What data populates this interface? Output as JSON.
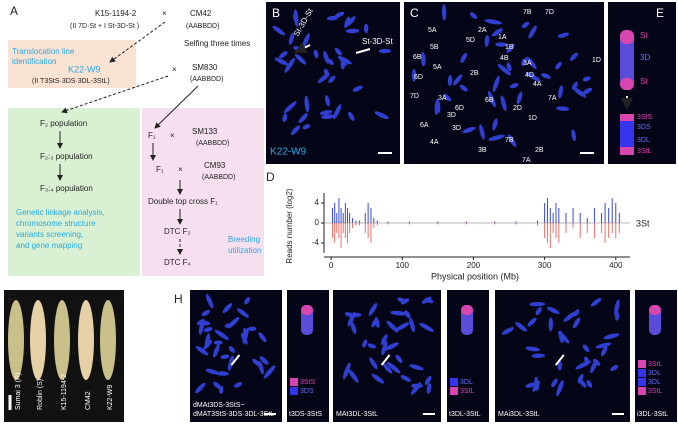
{
  "panel_a": {
    "label": "A",
    "parent1": "K15-1194-2",
    "cross": "×",
    "parent2": "CM42",
    "parent1_karyotype": "(II 7D·St + I St-3D-St )",
    "parent2_genome": "(AABBDD)",
    "note_translocation": [
      "Translocation line",
      "identification"
    ],
    "selfing": "Selfing three times",
    "line": "K22-W9",
    "line_karyotype": "(II T3StS·3DS·3DL-3StL)",
    "parent3": "SM830",
    "parent3_genome": "(AABBDD)",
    "mapping": {
      "steps": [
        "F₂ population",
        "F₂:₃ population",
        "F₃:₄ population"
      ],
      "note": [
        "Genetic linkage analysis,",
        "chromosome  structure",
        "variants screening,",
        "and gene mapping"
      ]
    },
    "breeding": {
      "f1": "F₁",
      "parent4": "SM133",
      "parent4_genome": "(AABBDD)",
      "parent5": "CM93",
      "parent5_genome": "(AABBDD)",
      "steps": [
        "Double top cross F₁",
        "DTC F₂",
        "DTC F₄"
      ],
      "note": [
        "Breeding",
        "utilization"
      ]
    }
  },
  "panel_b": {
    "label": "B",
    "arrows": [
      "St-3D-St",
      "St-3D-St"
    ],
    "line": "K22-W9"
  },
  "panel_c": {
    "label": "C",
    "chromosomes": [
      "7B",
      "7D",
      "5A",
      "2A",
      "5D",
      "1A",
      "5B",
      "1B",
      "6B",
      "4B",
      "3A",
      "1D",
      "6D",
      "5A",
      "2B",
      "4D",
      "7D",
      "3A",
      "6D",
      "4A",
      "7A",
      "6B",
      "2D",
      "3D",
      "6A",
      "1D",
      "3D",
      "4A",
      "3B",
      "7B",
      "2B",
      "7A"
    ]
  },
  "panel_e": {
    "label": "E",
    "fish": [
      "St",
      "3D",
      "St"
    ],
    "diagram": [
      "3StS",
      "3DS",
      "3DL",
      "3StL"
    ]
  },
  "panel_d": {
    "label": "D",
    "type": "bar",
    "y_label": "Reads number (log2)",
    "x_label": "Physical position (Mb)",
    "chromosome": "3St",
    "xlim": [
      -10,
      420
    ],
    "xticks": [
      0,
      100,
      200,
      300,
      400
    ],
    "ylim": [
      -6,
      6
    ],
    "yticks": [
      4,
      0,
      -4
    ],
    "x": [
      2,
      5,
      8,
      11,
      14,
      17,
      20,
      23,
      26,
      30,
      35,
      40,
      48,
      52,
      56,
      60,
      65,
      80,
      110,
      150,
      190,
      230,
      260,
      290,
      300,
      304,
      308,
      312,
      316,
      320,
      330,
      340,
      350,
      360,
      370,
      380,
      385,
      390,
      395,
      400,
      405
    ],
    "series": [
      {
        "name": "gain",
        "color": "#3b4bc8",
        "values": [
          3,
          4,
          2,
          5,
          3,
          2,
          4,
          3,
          2,
          1,
          0.5,
          0.5,
          2,
          4,
          3,
          1,
          0.5,
          0.3,
          0.3,
          0.3,
          0.3,
          0.3,
          0.3,
          0.5,
          4,
          5,
          3,
          2,
          4,
          3,
          2,
          3,
          2,
          1,
          3,
          2,
          4,
          3,
          5,
          4,
          2
        ]
      },
      {
        "name": "loss",
        "color": "#e8736c",
        "values": [
          -3,
          -4,
          -2,
          -3,
          -5,
          -2,
          -3,
          -4,
          -2,
          -1,
          -0.5,
          -0.5,
          -2,
          -3,
          -4,
          -1,
          -0.5,
          -0.3,
          -0.3,
          -0.3,
          -0.3,
          -0.3,
          -0.3,
          -0.5,
          -3,
          -4,
          -5,
          -2,
          -3,
          -4,
          -2,
          -1,
          -3,
          -2,
          -3,
          -2,
          -4,
          -3,
          -2,
          -3,
          -2
        ]
      }
    ]
  },
  "panel_f": {
    "label": "F",
    "spikes": [
      "Sumai 3 (R)",
      "Roblin (S)",
      "K15-1194-2",
      "CM42",
      "K22-W9"
    ]
  },
  "panel_h": {
    "label": "H",
    "images": [
      {
        "name": [
          "dMAt3DS-3StS~",
          "dMAT3StS-3DS·3DL-3StL"
        ],
        "chromosome": "t3DS-3StS",
        "diagram": [
          "3StS",
          "3DS"
        ]
      },
      {
        "name": [
          "MAt3DL-3StL"
        ],
        "chromosome": "t3DL-3StL",
        "diagram": [
          "3DL",
          "3StL"
        ]
      },
      {
        "name": [
          "MAi3DL-3StL"
        ],
        "chromosome": "i3DL-3StL",
        "diagram": [
          "3StL",
          "3DL",
          "3DL",
          "3StL"
        ]
      }
    ]
  }
}
